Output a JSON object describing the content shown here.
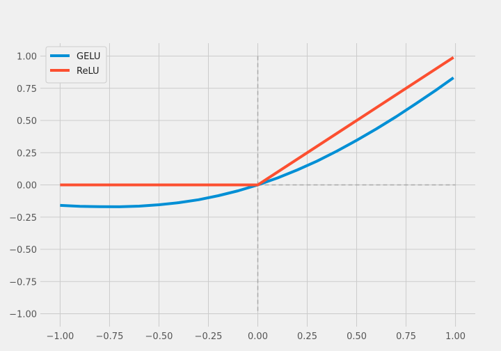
{
  "chart_data": {
    "type": "line",
    "title": "",
    "xlabel": "",
    "ylabel": "",
    "xlim": [
      -1.1,
      1.1
    ],
    "ylim": [
      -1.1,
      1.1
    ],
    "xticks": [
      -1.0,
      -0.75,
      -0.5,
      -0.25,
      0.0,
      0.25,
      0.5,
      0.75,
      1.0
    ],
    "yticks": [
      -1.0,
      -0.75,
      -0.5,
      -0.25,
      0.0,
      0.25,
      0.5,
      0.75,
      1.0
    ],
    "xtick_labels": [
      "−1.00",
      "−0.75",
      "−0.50",
      "−0.25",
      "0.00",
      "0.25",
      "0.50",
      "0.75",
      "1.00"
    ],
    "ytick_labels": [
      "−1.00",
      "−0.75",
      "−0.50",
      "−0.25",
      "0.00",
      "0.25",
      "0.50",
      "0.75",
      "1.00"
    ],
    "grid": true,
    "legend_position": "upper-left",
    "reference_lines": [
      {
        "orientation": "vertical",
        "value": 0.0,
        "from": -1.0,
        "to": 1.0,
        "style": "dashed"
      },
      {
        "orientation": "horizontal",
        "value": 0.0,
        "from": 0.0,
        "to": 1.0,
        "style": "dashed"
      }
    ],
    "series": [
      {
        "name": "GELU",
        "color": "#008fd5",
        "x": [
          -1.0,
          -0.9,
          -0.8,
          -0.7,
          -0.6,
          -0.5,
          -0.4,
          -0.3,
          -0.2,
          -0.1,
          0.0,
          0.1,
          0.2,
          0.3,
          0.4,
          0.5,
          0.6,
          0.7,
          0.8,
          0.9,
          0.99
        ],
        "y": [
          -0.159,
          -0.166,
          -0.169,
          -0.17,
          -0.165,
          -0.154,
          -0.138,
          -0.115,
          -0.084,
          -0.046,
          0.0,
          0.054,
          0.116,
          0.185,
          0.262,
          0.346,
          0.435,
          0.53,
          0.631,
          0.734,
          0.832
        ]
      },
      {
        "name": "ReLU",
        "color": "#fc4f30",
        "x": [
          -1.0,
          0.0,
          0.99
        ],
        "y": [
          0.0,
          0.0,
          0.99
        ]
      }
    ]
  }
}
